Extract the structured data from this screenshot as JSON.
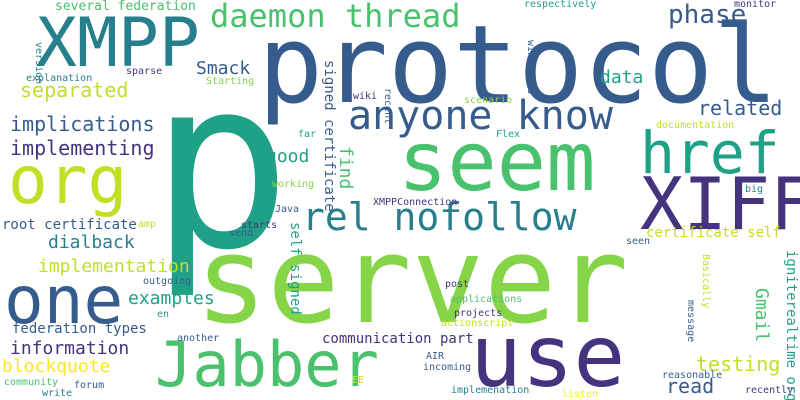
{
  "palette": {
    "purple": "#46337e",
    "dark_blue": "#365c8d",
    "blue": "#277f8e",
    "teal": "#1fa187",
    "green": "#4ac16d",
    "light_green": "#86d549",
    "yellow": "#c0df25",
    "bright_yellow": "#fde725"
  },
  "words": [
    {
      "text": "p",
      "color": "teal"
    },
    {
      "text": "server",
      "color": "light_green"
    },
    {
      "text": "protocol",
      "color": "dark_blue"
    },
    {
      "text": "seem",
      "color": "green"
    },
    {
      "text": "use",
      "color": "purple"
    },
    {
      "text": "Jabber",
      "color": "green"
    },
    {
      "text": "org",
      "color": "yellow"
    },
    {
      "text": "XMPP",
      "color": "blue"
    },
    {
      "text": "one",
      "color": "dark_blue"
    },
    {
      "text": "href",
      "color": "teal"
    },
    {
      "text": "XIFF",
      "color": "purple"
    },
    {
      "text": "anyone know",
      "color": "dark_blue"
    },
    {
      "text": "rel nofollow",
      "color": "blue"
    },
    {
      "text": "daemon thread",
      "color": "green"
    },
    {
      "text": "phase",
      "color": "dark_blue"
    },
    {
      "text": "related",
      "color": "dark_blue"
    },
    {
      "text": "separated",
      "color": "yellow"
    },
    {
      "text": "implications",
      "color": "dark_blue"
    },
    {
      "text": "implementing",
      "color": "purple"
    },
    {
      "text": "Smack",
      "color": "dark_blue"
    },
    {
      "text": "data",
      "color": "teal"
    },
    {
      "text": "good",
      "color": "teal"
    },
    {
      "text": "find",
      "color": "green"
    },
    {
      "text": "signed certificate",
      "color": "dark_blue"
    },
    {
      "text": "dialback",
      "color": "blue"
    },
    {
      "text": "implementation",
      "color": "yellow"
    },
    {
      "text": "examples",
      "color": "teal"
    },
    {
      "text": "root certificate",
      "color": "dark_blue"
    },
    {
      "text": "self signed",
      "color": "teal"
    },
    {
      "text": "information",
      "color": "purple"
    },
    {
      "text": "blockquote",
      "color": "bright_yellow"
    },
    {
      "text": "federation types",
      "color": "dark_blue"
    },
    {
      "text": "communication part",
      "color": "purple"
    },
    {
      "text": "testing",
      "color": "yellow"
    },
    {
      "text": "read",
      "color": "dark_blue"
    },
    {
      "text": "Gmail",
      "color": "green"
    },
    {
      "text": "certificate self",
      "color": "yellow"
    },
    {
      "text": "igniterealtime org",
      "color": "teal"
    },
    {
      "text": "several federation",
      "color": "green"
    },
    {
      "text": "respectively",
      "color": "teal"
    },
    {
      "text": "monitor",
      "color": "purple"
    },
    {
      "text": "version",
      "color": "blue"
    },
    {
      "text": "explanation",
      "color": "blue"
    },
    {
      "text": "sparse",
      "color": "purple"
    },
    {
      "text": "Starting",
      "color": "light_green"
    },
    {
      "text": "wikipedia",
      "color": "dark_blue"
    },
    {
      "text": "wiki",
      "color": "purple"
    },
    {
      "text": "recent",
      "color": "dark_blue"
    },
    {
      "text": "scenario",
      "color": "light_green"
    },
    {
      "text": "Flex",
      "color": "teal"
    },
    {
      "text": "far",
      "color": "teal"
    },
    {
      "text": "documentation",
      "color": "yellow"
    },
    {
      "text": "working",
      "color": "light_green"
    },
    {
      "text": "Java",
      "color": "dark_blue"
    },
    {
      "text": "big",
      "color": "blue"
    },
    {
      "text": "XMPPConnection",
      "color": "purple"
    },
    {
      "text": "amp",
      "color": "yellow"
    },
    {
      "text": "starts",
      "color": "purple"
    },
    {
      "text": "send",
      "color": "dark_blue"
    },
    {
      "text": "seen",
      "color": "dark_blue"
    },
    {
      "text": "outgoing",
      "color": "dark_blue"
    },
    {
      "text": "Basically",
      "color": "yellow"
    },
    {
      "text": "post",
      "color": "purple"
    },
    {
      "text": "applications",
      "color": "green"
    },
    {
      "text": "projects",
      "color": "purple"
    },
    {
      "text": "actionscript",
      "color": "yellow"
    },
    {
      "text": "en",
      "color": "teal"
    },
    {
      "text": "message",
      "color": "dark_blue"
    },
    {
      "text": "another",
      "color": "dark_blue"
    },
    {
      "text": "AIR",
      "color": "dark_blue"
    },
    {
      "text": "incoming",
      "color": "dark_blue"
    },
    {
      "text": "reasonable",
      "color": "dark_blue"
    },
    {
      "text": "community",
      "color": "green"
    },
    {
      "text": "forum",
      "color": "dark_blue"
    },
    {
      "text": "write",
      "color": "blue"
    },
    {
      "text": "EE",
      "color": "yellow"
    },
    {
      "text": "implemenation",
      "color": "blue"
    },
    {
      "text": "listen",
      "color": "bright_yellow"
    },
    {
      "text": "recently",
      "color": "purple"
    }
  ]
}
